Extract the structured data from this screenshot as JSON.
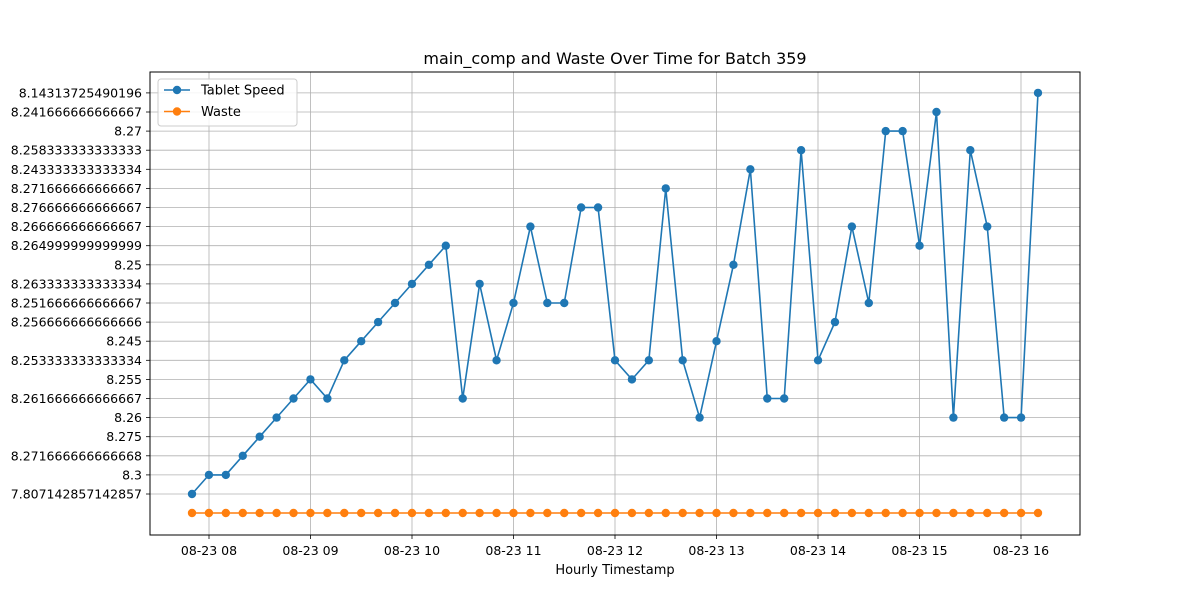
{
  "chart_data": {
    "type": "line",
    "title": "main_comp and Waste Over Time for Batch 359",
    "xlabel": "Hourly Timestamp",
    "ylabel": "",
    "x_tick_labels": [
      "08-23 08",
      "08-23 09",
      "08-23 10",
      "08-23 11",
      "08-23 12",
      "08-23 13",
      "08-23 14",
      "08-23 15",
      "08-23 16"
    ],
    "y_categories": [
      "7.807142857142857",
      "8.3",
      "8.271666666666668",
      "8.275",
      "8.26",
      "8.261666666666667",
      "8.255",
      "8.253333333333334",
      "8.245",
      "8.256666666666666",
      "8.251666666666667",
      "8.263333333333334",
      "8.25",
      "8.264999999999999",
      "8.266666666666667",
      "8.276666666666667",
      "8.271666666666667",
      "8.243333333333334",
      "8.258333333333333",
      "8.27",
      "8.241666666666667",
      "8.14313725490196"
    ],
    "grid": true,
    "legend_position": "upper-left",
    "series": [
      {
        "name": "Tablet Speed",
        "color": "#1f77b4",
        "values": [
          "7.807142857142857",
          "8.3",
          "8.3",
          "8.271666666666668",
          "8.275",
          "8.26",
          "8.261666666666667",
          "8.255",
          "8.261666666666667",
          "8.253333333333334",
          "8.245",
          "8.256666666666666",
          "8.251666666666667",
          "8.263333333333334",
          "8.25",
          "8.264999999999999",
          "8.261666666666667",
          "8.263333333333334",
          "8.253333333333334",
          "8.251666666666667",
          "8.266666666666667",
          "8.251666666666667",
          "8.251666666666667",
          "8.276666666666667",
          "8.276666666666667",
          "8.253333333333334",
          "8.255",
          "8.253333333333334",
          "8.271666666666667",
          "8.253333333333334",
          "8.26",
          "8.245",
          "8.25",
          "8.243333333333334",
          "8.261666666666667",
          "8.261666666666667",
          "8.258333333333333",
          "8.253333333333334",
          "8.256666666666666",
          "8.266666666666667",
          "8.251666666666667",
          "8.27",
          "8.27",
          "8.264999999999999",
          "8.241666666666667",
          "8.26",
          "8.258333333333333",
          "8.266666666666667",
          "8.26",
          "8.26",
          "8.14313725490196"
        ]
      },
      {
        "name": "Waste",
        "color": "#ff7f0e",
        "values": [
          0,
          0,
          0,
          0,
          0,
          0,
          0,
          0,
          0,
          0,
          0,
          0,
          0,
          0,
          0,
          0,
          0,
          0,
          0,
          0,
          0,
          0,
          0,
          0,
          0,
          0,
          0,
          0,
          0,
          0,
          0,
          0,
          0,
          0,
          0,
          0,
          0,
          0,
          0,
          0,
          0,
          0,
          0,
          0,
          0,
          0,
          0,
          0,
          0,
          0,
          0
        ]
      }
    ]
  }
}
